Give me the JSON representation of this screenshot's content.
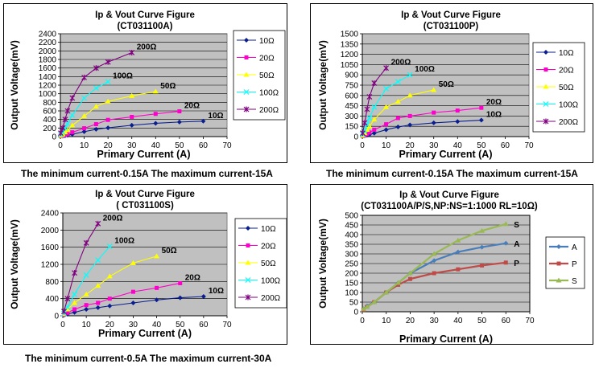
{
  "captions": {
    "tl": "The minimum current-0.15A  The maximum current-15A",
    "tr": "The minimum current-0.15A  The maximum current-15A",
    "bl": "The minimum current-0.5A  The maximum current-30A"
  },
  "chart_data": [
    {
      "type": "line",
      "title": "Ip & Vout Curve Figure",
      "subtitle": "(CT031100A)",
      "xlabel": "Primary  Current (A)",
      "ylabel": "Output Voltage(mV)",
      "xlim": [
        0,
        70
      ],
      "xticks": [
        0,
        10,
        20,
        30,
        40,
        50,
        60,
        70
      ],
      "ylim": [
        0,
        2400
      ],
      "yticks": [
        0,
        200,
        400,
        600,
        800,
        1000,
        1200,
        1400,
        1600,
        1800,
        2000,
        2200,
        2400
      ],
      "grid": true,
      "legend": "right",
      "series": [
        {
          "name": "10Ω",
          "color": "#0a1f8f",
          "marker": "diamond",
          "end_label": "10Ω",
          "x": [
            0.15,
            1,
            2,
            3,
            5,
            10,
            15,
            20,
            30,
            40,
            50,
            60
          ],
          "y": [
            6,
            10,
            20,
            30,
            55,
            115,
            170,
            205,
            265,
            310,
            340,
            360
          ]
        },
        {
          "name": "20Ω",
          "color": "#ff00cc",
          "marker": "square",
          "end_label": "20Ω",
          "x": [
            0.15,
            1,
            2,
            3,
            5,
            10,
            15,
            20,
            30,
            40,
            50
          ],
          "y": [
            10,
            20,
            40,
            60,
            100,
            195,
            290,
            390,
            460,
            530,
            590
          ]
        },
        {
          "name": "50Ω",
          "color": "#ffff00",
          "marker": "triangle",
          "end_label": "50Ω",
          "x": [
            0.15,
            1,
            2,
            3,
            5,
            10,
            15,
            20,
            30,
            40
          ],
          "y": [
            20,
            50,
            100,
            150,
            260,
            480,
            700,
            820,
            950,
            1050
          ]
        },
        {
          "name": "100Ω",
          "color": "#00ffff",
          "marker": "x",
          "end_label": "100Ω",
          "x": [
            0.15,
            1,
            2,
            3,
            5,
            10,
            15,
            20
          ],
          "y": [
            40,
            100,
            200,
            300,
            500,
            900,
            1130,
            1280
          ]
        },
        {
          "name": "200Ω",
          "color": "#800080",
          "marker": "star",
          "end_label": "200Ω",
          "x": [
            0.15,
            1,
            2,
            3,
            5,
            10,
            15,
            20,
            30
          ],
          "y": [
            80,
            200,
            400,
            600,
            900,
            1380,
            1600,
            1740,
            1960
          ]
        }
      ]
    },
    {
      "type": "line",
      "title": "Ip & Vout Curve Figure",
      "subtitle": "(CT031100P)",
      "xlabel": "Primary  Current (A)",
      "ylabel": "Output Voltage(mV)",
      "xlim": [
        0,
        70
      ],
      "xticks": [
        0,
        10,
        20,
        30,
        40,
        50,
        60,
        70
      ],
      "ylim": [
        0,
        1500
      ],
      "yticks": [
        0,
        150,
        300,
        450,
        600,
        750,
        900,
        1050,
        1200,
        1350,
        1500
      ],
      "grid": true,
      "legend": "right",
      "series": [
        {
          "name": "10Ω",
          "color": "#0a1f8f",
          "marker": "diamond",
          "end_label": "10Ω",
          "x": [
            0.15,
            1,
            2,
            3,
            5,
            10,
            15,
            20,
            30,
            40,
            50
          ],
          "y": [
            5,
            10,
            20,
            30,
            50,
            100,
            140,
            170,
            200,
            220,
            240
          ]
        },
        {
          "name": "20Ω",
          "color": "#ff00cc",
          "marker": "square",
          "end_label": "20Ω",
          "x": [
            0.15,
            1,
            2,
            3,
            5,
            10,
            15,
            20,
            30,
            40,
            50
          ],
          "y": [
            8,
            20,
            40,
            60,
            100,
            180,
            270,
            300,
            350,
            380,
            420
          ]
        },
        {
          "name": "50Ω",
          "color": "#ffff00",
          "marker": "triangle",
          "end_label": "50Ω",
          "x": [
            0.15,
            1,
            2,
            3,
            5,
            10,
            15,
            20,
            30
          ],
          "y": [
            15,
            50,
            100,
            150,
            250,
            430,
            510,
            600,
            680
          ]
        },
        {
          "name": "100Ω",
          "color": "#00ffff",
          "marker": "x",
          "end_label": "100Ω",
          "x": [
            0.15,
            1,
            2,
            3,
            5,
            10,
            15,
            20
          ],
          "y": [
            30,
            90,
            180,
            270,
            430,
            700,
            800,
            900
          ]
        },
        {
          "name": "200Ω",
          "color": "#800080",
          "marker": "star",
          "end_label": "200Ω",
          "x": [
            0.15,
            1,
            2,
            3,
            5,
            10
          ],
          "y": [
            50,
            200,
            400,
            580,
            780,
            1000
          ]
        }
      ]
    },
    {
      "type": "line",
      "title": "Ip & Vout Curve Figure",
      "subtitle": "( CT031100S)",
      "xlabel": "Primary  Current (A)",
      "ylabel": "Output Voltage(mV)",
      "xlim": [
        0,
        70
      ],
      "xticks": [
        0,
        10,
        20,
        30,
        40,
        50,
        60,
        70
      ],
      "ylim": [
        0,
        2400
      ],
      "yticks": [
        0,
        400,
        800,
        1200,
        1600,
        2000,
        2400
      ],
      "grid": true,
      "legend": "right",
      "series": [
        {
          "name": "10Ω",
          "color": "#0a1f8f",
          "marker": "diamond",
          "end_label": "10Ω",
          "x": [
            0.5,
            2,
            5,
            10,
            15,
            20,
            30,
            40,
            50,
            60
          ],
          "y": [
            15,
            40,
            80,
            150,
            190,
            230,
            300,
            370,
            420,
            450
          ]
        },
        {
          "name": "20Ω",
          "color": "#ff00cc",
          "marker": "square",
          "end_label": "20Ω",
          "x": [
            0.5,
            2,
            5,
            10,
            15,
            20,
            30,
            40,
            50
          ],
          "y": [
            25,
            70,
            150,
            250,
            300,
            400,
            560,
            650,
            760
          ]
        },
        {
          "name": "50Ω",
          "color": "#ffff00",
          "marker": "triangle",
          "end_label": "50Ω",
          "x": [
            0.5,
            2,
            5,
            10,
            15,
            20,
            30,
            40
          ],
          "y": [
            40,
            150,
            300,
            500,
            700,
            920,
            1230,
            1390
          ]
        },
        {
          "name": "100Ω",
          "color": "#00ffff",
          "marker": "x",
          "end_label": "100Ω",
          "x": [
            0.5,
            2,
            5,
            10,
            15,
            20
          ],
          "y": [
            50,
            200,
            500,
            950,
            1300,
            1620
          ]
        },
        {
          "name": "200Ω",
          "color": "#800080",
          "marker": "star",
          "end_label": "200Ω",
          "x": [
            0.5,
            2,
            5,
            10,
            15
          ],
          "y": [
            100,
            400,
            1000,
            1700,
            2150
          ]
        }
      ]
    },
    {
      "type": "line",
      "title": "Ip & Vout Curve Figure",
      "subtitle": "(CT031100A/P/S,NP:NS=1:1000 RL=10Ω)",
      "xlabel": "Primary  Current (A)",
      "ylabel": "Output Voltage(mV)",
      "xlim": [
        0,
        70
      ],
      "xticks": [
        0,
        10,
        20,
        30,
        40,
        50,
        60,
        70
      ],
      "ylim": [
        0,
        500
      ],
      "yticks": [
        0,
        50,
        100,
        150,
        200,
        250,
        300,
        350,
        400,
        450,
        500
      ],
      "grid": true,
      "legend": "right",
      "series": [
        {
          "name": "A",
          "color": "#4a7ebb",
          "marker": "diamond",
          "end_label": "A",
          "x": [
            0.5,
            2,
            5,
            10,
            15,
            20,
            30,
            40,
            50,
            60
          ],
          "y": [
            15,
            30,
            50,
            100,
            150,
            200,
            265,
            310,
            335,
            355
          ]
        },
        {
          "name": "P",
          "color": "#be4b48",
          "marker": "square",
          "end_label": "P",
          "x": [
            0.5,
            2,
            5,
            10,
            15,
            20,
            30,
            40,
            50,
            60
          ],
          "y": [
            10,
            25,
            50,
            100,
            140,
            170,
            200,
            220,
            240,
            255
          ]
        },
        {
          "name": "S",
          "color": "#98b954",
          "marker": "triangle",
          "end_label": "S",
          "x": [
            0.5,
            2,
            5,
            10,
            15,
            20,
            30,
            40,
            50,
            60
          ],
          "y": [
            15,
            25,
            50,
            100,
            150,
            200,
            300,
            370,
            420,
            455
          ]
        }
      ]
    }
  ]
}
